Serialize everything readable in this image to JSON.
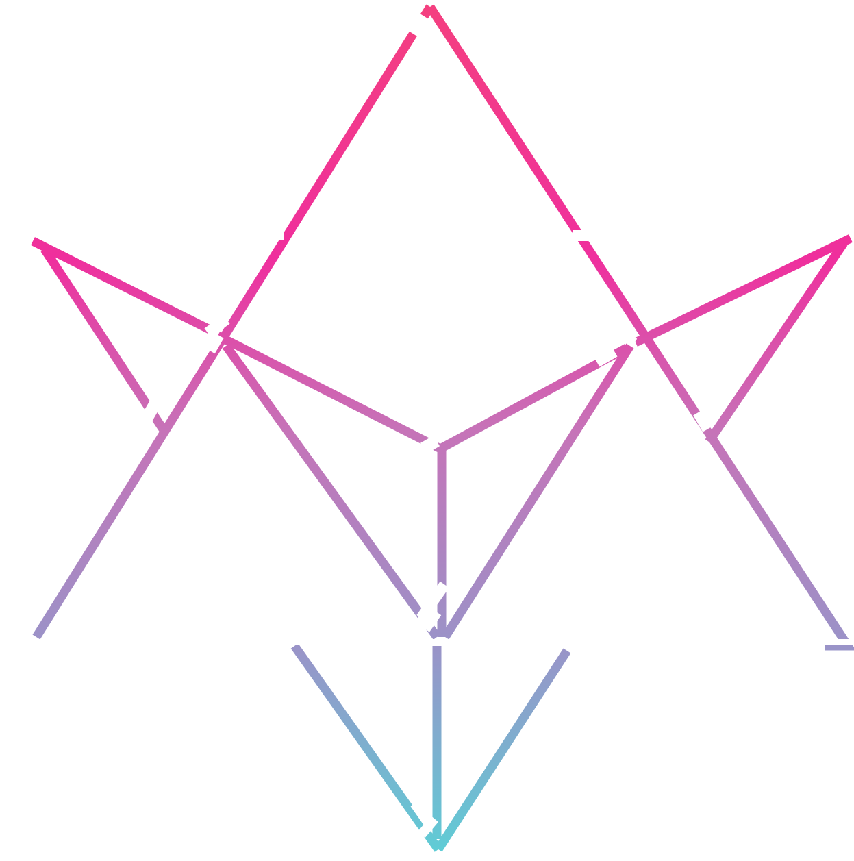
{
  "graphic": {
    "icon": "geometric-star-logo",
    "colors": {
      "background": "#ffffff",
      "gradient_top": "#f4407f",
      "gradient_pink": "#ef2f9d",
      "gradient_mid": "#c673b8",
      "gradient_lavender": "#9a93c8",
      "gradient_bottom": "#5ccfd6"
    }
  }
}
